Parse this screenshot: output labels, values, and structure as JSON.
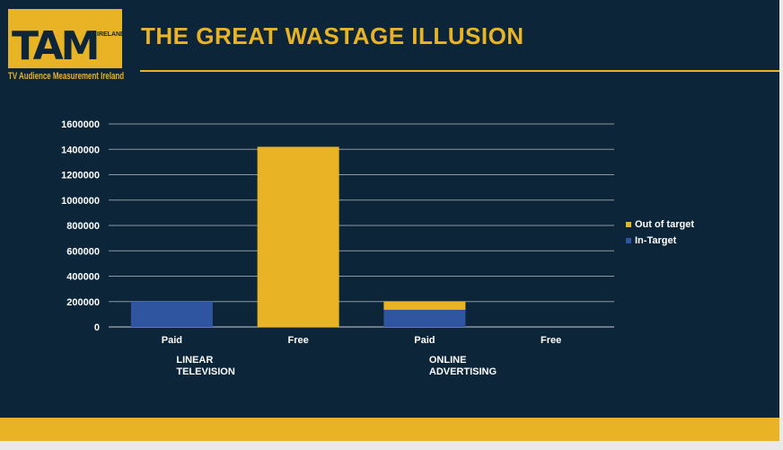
{
  "logo": {
    "mark": "TAM",
    "country": "IRELAND",
    "tagline": "TV Audience Measurement Ireland"
  },
  "header": {
    "title": "THE GREAT WASTAGE ILLUSION"
  },
  "colors": {
    "background": "#0d2538",
    "accent": "#e8b425",
    "in_target": "#2f55a1",
    "out_of_target": "#e8b425"
  },
  "chart_data": {
    "type": "bar",
    "stacked": true,
    "title": "",
    "xlabel": "",
    "ylabel": "",
    "ylim": [
      0,
      1600000
    ],
    "yticks": [
      0,
      200000,
      400000,
      600000,
      800000,
      1000000,
      1200000,
      1400000,
      1600000
    ],
    "grid": true,
    "legend_position": "right",
    "categories": [
      "Paid",
      "Free",
      "Paid",
      "Free"
    ],
    "groups": [
      {
        "label": "LINEAR TELEVISION",
        "lines": [
          "LINEAR",
          "TELEVISION"
        ],
        "categories": [
          0,
          1
        ]
      },
      {
        "label": "ONLINE ADVERTISING",
        "lines": [
          "ONLINE",
          "ADVERTISING"
        ],
        "categories": [
          2,
          3
        ]
      }
    ],
    "series": [
      {
        "name": "In-Target",
        "color": "#2f55a1",
        "values": [
          200000,
          0,
          135000,
          0
        ]
      },
      {
        "name": "Out of target",
        "color": "#e8b425",
        "values": [
          0,
          1420000,
          65000,
          0
        ]
      }
    ],
    "legend_order": [
      "Out of target",
      "In-Target"
    ]
  }
}
